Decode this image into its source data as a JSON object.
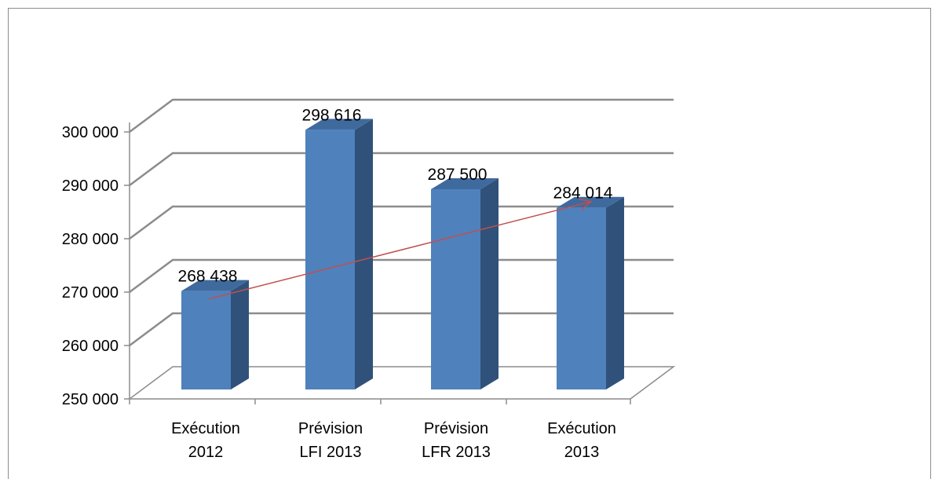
{
  "chart_data": {
    "type": "bar",
    "title": "",
    "xlabel": "",
    "ylabel": "",
    "categories": [
      [
        "Exécution",
        "2012"
      ],
      [
        "Prévision",
        "LFI 2013"
      ],
      [
        "Prévision",
        "LFR 2013"
      ],
      [
        "Exécution",
        "2013"
      ]
    ],
    "values": [
      268438,
      298616,
      287500,
      284014
    ],
    "data_labels": [
      "268 438",
      "298 616",
      "287 500",
      "284 014"
    ],
    "ylim": [
      250000,
      300000
    ],
    "yticks": [
      250000,
      260000,
      270000,
      280000,
      290000,
      300000
    ],
    "ytick_labels": [
      "250 000",
      "260 000",
      "270 000",
      "280 000",
      "290 000",
      "300 000"
    ],
    "grid": true,
    "legend": "none",
    "style": "3d-column",
    "colors": {
      "bar_front": "#4f81bd",
      "bar_side": "#30527a",
      "bar_top": "#3f6a9e",
      "gridline": "#8c8c8c",
      "trend_arrow": "#c0504d"
    },
    "annotations": [
      {
        "type": "arrow",
        "from_category": 0,
        "to_category": 3,
        "note": "trend arrow"
      }
    ]
  }
}
